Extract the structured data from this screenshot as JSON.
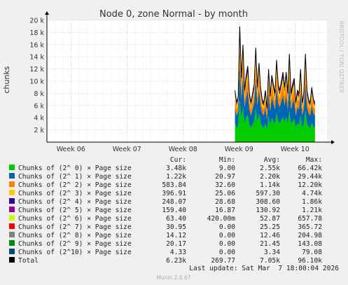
{
  "chart_data": {
    "type": "area",
    "title": "Node 0, zone Normal - by month",
    "ylabel": "chunks",
    "side_label": "RRDTOOL / TOBI OETIKER",
    "ylim": [
      0,
      20000
    ],
    "y_ticks": [
      {
        "value": 2000,
        "label": "2 k"
      },
      {
        "value": 4000,
        "label": "4 k"
      },
      {
        "value": 6000,
        "label": "6 k"
      },
      {
        "value": 8000,
        "label": "8 k"
      },
      {
        "value": 10000,
        "label": "10 k"
      },
      {
        "value": 12000,
        "label": "12 k"
      },
      {
        "value": 14000,
        "label": "14 k"
      },
      {
        "value": 16000,
        "label": "16 k"
      },
      {
        "value": 18000,
        "label": "18 k"
      },
      {
        "value": 20000,
        "label": "20 k"
      }
    ],
    "xlim": [
      0,
      35
    ],
    "x_ticks": [
      {
        "value": 3,
        "label": "Week 06"
      },
      {
        "value": 10,
        "label": "Week 07"
      },
      {
        "value": 17,
        "label": "Week 08"
      },
      {
        "value": 24,
        "label": "Week 09"
      },
      {
        "value": 31,
        "label": "Week 10"
      }
    ],
    "x": [
      23.5,
      23.7,
      23.9,
      24.1,
      24.3,
      24.5,
      24.7,
      24.9,
      25.1,
      25.3,
      25.5,
      25.7,
      25.9,
      26.1,
      26.3,
      26.5,
      26.7,
      26.9,
      27.1,
      27.3,
      27.5,
      27.7,
      27.9,
      28.1,
      28.3,
      28.5,
      28.7,
      28.9,
      29.1,
      29.3,
      29.5,
      29.7,
      29.9,
      30.1,
      30.3,
      30.5,
      30.7,
      30.9,
      31.1,
      31.3,
      31.5,
      31.7,
      31.9,
      32.1,
      32.3,
      32.5,
      32.7,
      32.9,
      33.1,
      33.3,
      33.5
    ],
    "total": [
      8500,
      6500,
      7500,
      19000,
      10500,
      16000,
      8500,
      11000,
      12500,
      8000,
      6500,
      8000,
      9500,
      15500,
      9000,
      13000,
      9000,
      7000,
      6500,
      8500,
      5500,
      12000,
      7500,
      11000,
      9500,
      8000,
      13500,
      9500,
      8500,
      10000,
      11500,
      9000,
      11500,
      8000,
      14500,
      8000,
      9500,
      10500,
      6500,
      8500,
      8000,
      12000,
      6500,
      8000,
      14500,
      8500,
      7000,
      6500,
      9000,
      7000,
      6500
    ],
    "legend_headers": {
      "cur": "Cur:",
      "min": "Min:",
      "avg": "Avg:",
      "max": "Max:"
    },
    "series": [
      {
        "name": "Chunks of (2^ 0) × Page size",
        "color": "#00cc00",
        "cur": "3.48k",
        "min": "9.00",
        "avg": "2.55k",
        "max": "66.42k"
      },
      {
        "name": "Chunks of (2^ 1) × Page size",
        "color": "#0066b3",
        "cur": "1.22k",
        "min": "20.97",
        "avg": "2.20k",
        "max": "29.44k"
      },
      {
        "name": "Chunks of (2^ 2) × Page size",
        "color": "#ff8000",
        "cur": "583.84",
        "min": "32.60",
        "avg": "1.14k",
        "max": "12.20k"
      },
      {
        "name": "Chunks of (2^ 3) × Page size",
        "color": "#ffcc00",
        "cur": "396.91",
        "min": "25.06",
        "avg": "597.30",
        "max": "4.74k"
      },
      {
        "name": "Chunks of (2^ 4) × Page size",
        "color": "#330099",
        "cur": "248.07",
        "min": "28.68",
        "avg": "308.60",
        "max": "1.86k"
      },
      {
        "name": "Chunks of (2^ 5) × Page size",
        "color": "#990099",
        "cur": "159.40",
        "min": "16.87",
        "avg": "130.92",
        "max": "1.21k"
      },
      {
        "name": "Chunks of (2^ 6) × Page size",
        "color": "#ccff00",
        "cur": "63.40",
        "min": "420.00m",
        "avg": "52.87",
        "max": "657.78"
      },
      {
        "name": "Chunks of (2^ 7) × Page size",
        "color": "#ff0000",
        "cur": "30.95",
        "min": "0.00",
        "avg": "25.25",
        "max": "365.72"
      },
      {
        "name": "Chunks of (2^ 8) × Page size",
        "color": "#808080",
        "cur": "14.12",
        "min": "0.00",
        "avg": "12.46",
        "max": "204.98"
      },
      {
        "name": "Chunks of (2^ 9) × Page size",
        "color": "#008f00",
        "cur": "20.17",
        "min": "0.00",
        "avg": "21.45",
        "max": "143.08"
      },
      {
        "name": "Chunks of (2^10) × Page size",
        "color": "#00487d",
        "cur": "4.33",
        "min": "0.00",
        "avg": "3.34",
        "max": "79.08"
      },
      {
        "name": "Total",
        "color": "#000000",
        "cur": "6.23k",
        "min": "269.77",
        "avg": "7.05k",
        "max": "96.10k"
      }
    ],
    "last_update": "Last update: Sat Mar  7 18:00:04 2026",
    "footer": "Munin 2.0.67"
  }
}
